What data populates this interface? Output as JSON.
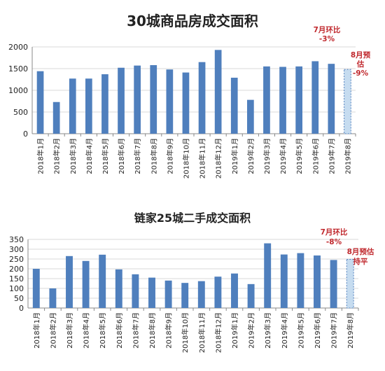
{
  "chart_data": [
    {
      "type": "bar",
      "title": "30城商品房成交面积",
      "categories": [
        "2018年1月",
        "2018年2月",
        "2018年3月",
        "2018年4月",
        "2018年5月",
        "2018年6月",
        "2018年7月",
        "2018年8月",
        "2018年9月",
        "2018年10月",
        "2018年11月",
        "2018年12月",
        "2019年1月",
        "2019年2月",
        "2019年3月",
        "2019年4月",
        "2019年5月",
        "2019年6月",
        "2019年7月",
        "2019年8月"
      ],
      "values": [
        1440,
        730,
        1270,
        1270,
        1370,
        1520,
        1570,
        1580,
        1480,
        1410,
        1650,
        1930,
        1290,
        780,
        1550,
        1540,
        1550,
        1670,
        1610,
        1480
      ],
      "forecast_index": 19,
      "ylim": [
        0,
        2000
      ],
      "yticks": [
        0,
        500,
        1000,
        1500,
        2000
      ],
      "grid": true,
      "bar_color": "#4f7fbd",
      "forecast_fill": "#c6dcf0",
      "annotation_color": "#c0282d",
      "annotations": [
        {
          "lines": [
            "7月环比",
            "-3%"
          ]
        },
        {
          "lines": [
            "8月预",
            "估",
            "-9%"
          ]
        }
      ]
    },
    {
      "type": "bar",
      "title": "链家25城二手成交面积",
      "categories": [
        "2018年1月",
        "2018年2月",
        "2018年3月",
        "2018年4月",
        "2018年5月",
        "2018年6月",
        "2018年7月",
        "2018年8月",
        "2018年9月",
        "2018年10月",
        "2018年11月",
        "2018年12月",
        "2019年1月",
        "2019年2月",
        "2019年3月",
        "2019年4月",
        "2019年5月",
        "2019年6月",
        "2019年7月",
        "2019年8月"
      ],
      "values": [
        200,
        100,
        265,
        240,
        272,
        197,
        172,
        155,
        140,
        128,
        137,
        160,
        176,
        122,
        330,
        273,
        280,
        268,
        245,
        248
      ],
      "forecast_index": 19,
      "ylim": [
        0,
        350
      ],
      "yticks": [
        0,
        50,
        100,
        150,
        200,
        250,
        300,
        350
      ],
      "grid": true,
      "bar_color": "#4f7fbd",
      "forecast_fill": "#c6dcf0",
      "annotation_color": "#c0282d",
      "annotations": [
        {
          "lines": [
            "7月环比",
            "-8%"
          ]
        },
        {
          "lines": [
            "8月预估",
            "持平"
          ]
        }
      ]
    }
  ]
}
